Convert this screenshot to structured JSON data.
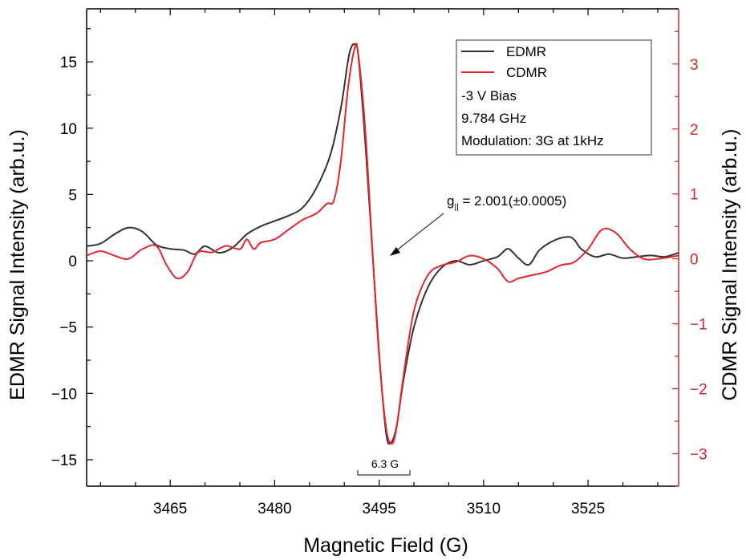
{
  "chart_data": {
    "type": "line",
    "xlabel": "Magnetic Field (G)",
    "ylabel_left": "EDMR Signal Intensity (arb.u.)",
    "ylabel_right": "CDMR Signal Intensity (arb.u.)",
    "xlim": [
      3453,
      3538
    ],
    "ylim_left": [
      -17,
      19
    ],
    "ylim_right": [
      -3.5,
      3.85
    ],
    "x_ticks": [
      "3465",
      "3480",
      "3495",
      "3510",
      "3525"
    ],
    "y_ticks_left": [
      "15",
      "10",
      "5",
      "0",
      "-5",
      "-10",
      "-15"
    ],
    "y_ticks_right": [
      "3",
      "2",
      "1",
      "0",
      "-1",
      "-2",
      "-3"
    ],
    "grid": false,
    "legend_position": "top-right",
    "series": [
      {
        "name": "EDMR",
        "axis": "left",
        "color": "#333333",
        "x": [
          3453,
          3455,
          3457,
          3459,
          3461,
          3463,
          3465,
          3467,
          3468.5,
          3470,
          3472,
          3474,
          3476,
          3478,
          3480,
          3482,
          3484,
          3486,
          3488,
          3489.5,
          3490.5,
          3491,
          3491.5,
          3492,
          3493,
          3494,
          3495,
          3496,
          3496.7,
          3497.5,
          3498.5,
          3500,
          3502,
          3504,
          3506,
          3508,
          3510,
          3512,
          3513.5,
          3515,
          3516.5,
          3518,
          3520,
          3522,
          3523,
          3524,
          3526,
          3528,
          3530,
          3532,
          3534,
          3536,
          3538
        ],
        "values": [
          1.1,
          1.3,
          2.0,
          2.5,
          2.2,
          1.2,
          0.9,
          0.8,
          0.5,
          1.1,
          0.6,
          1.0,
          2.0,
          2.6,
          3.0,
          3.4,
          4.0,
          5.5,
          8.0,
          11.5,
          15.0,
          16.1,
          16.3,
          15.5,
          9.0,
          1.0,
          -7.0,
          -13.0,
          -13.7,
          -12.5,
          -9.0,
          -5.0,
          -2.0,
          -0.5,
          0.0,
          -0.3,
          0.0,
          0.3,
          0.9,
          0.2,
          -0.3,
          0.8,
          1.5,
          1.8,
          1.6,
          0.9,
          0.3,
          0.5,
          0.2,
          0.3,
          0.4,
          0.3,
          0.6
        ]
      },
      {
        "name": "CDMR",
        "axis": "right",
        "color": "#e8252b",
        "x": [
          3453,
          3455,
          3457,
          3459,
          3461,
          3463,
          3464.5,
          3466,
          3467.5,
          3469,
          3471,
          3473,
          3475,
          3476,
          3477,
          3478,
          3480,
          3482,
          3484,
          3486,
          3487.5,
          3488.5,
          3489.5,
          3490.5,
          3491.5,
          3492,
          3493,
          3494,
          3495,
          3496,
          3496.8,
          3497.5,
          3498.5,
          3500,
          3502,
          3504,
          3506,
          3508,
          3510,
          3512,
          3513.5,
          3515,
          3517,
          3519,
          3521,
          3523,
          3525,
          3527,
          3529,
          3531,
          3533,
          3535,
          3538
        ],
        "values": [
          0.05,
          0.12,
          0.05,
          0.0,
          0.15,
          0.2,
          -0.1,
          -0.3,
          -0.2,
          0.1,
          0.1,
          0.2,
          0.15,
          0.3,
          0.15,
          0.25,
          0.3,
          0.45,
          0.6,
          0.7,
          0.85,
          0.9,
          1.5,
          2.6,
          3.25,
          3.15,
          2.0,
          0.2,
          -1.5,
          -2.6,
          -2.85,
          -2.6,
          -1.8,
          -0.8,
          -0.25,
          -0.1,
          -0.05,
          0.05,
          0.0,
          -0.15,
          -0.35,
          -0.3,
          -0.25,
          -0.2,
          -0.1,
          -0.05,
          0.15,
          0.45,
          0.4,
          0.15,
          0.0,
          0.0,
          0.05
        ]
      }
    ],
    "legend_entries": [
      "EDMR",
      "CDMR"
    ],
    "legend_notes": [
      "-3 V Bias",
      "9.784 GHz",
      "Modulation: 3G at 1kHz"
    ],
    "annotation_prefix": "g",
    "annotation_subscript": "||",
    "annotation_value": " = 2.001(±0.0005)",
    "bracket_label": "6.3 G",
    "colors": {
      "left_axis": "#000000",
      "right_axis": "#d62728"
    }
  }
}
